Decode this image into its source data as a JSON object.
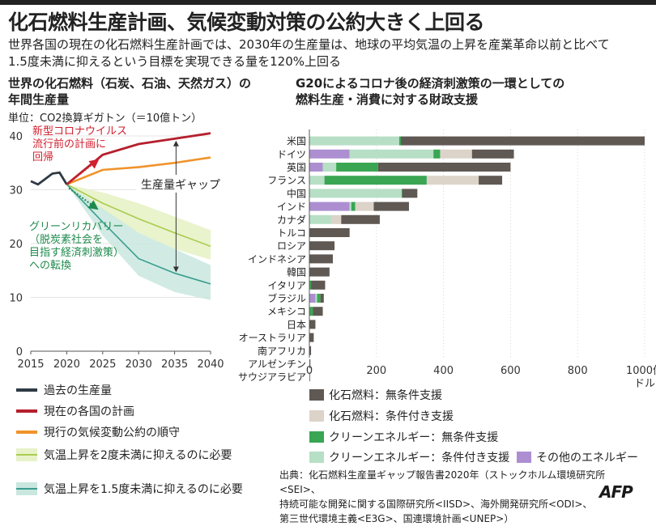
{
  "title": "化石燃料生産計画、気候変動対策の公約大きく上回る",
  "subtitle_lines": [
    "世界各国の現在の化石燃料生産計画では、2030年の生産量は、地球の平均気温の上昇を産業革命以前と比べて",
    "1.5度未満に抑えるという目標を実現できる量を120%上回る"
  ],
  "left_section": {
    "title_lines": [
      "世界の化石燃料（石炭、石油、天然ガス）の",
      "年間生産量"
    ],
    "unit": "単位：CO2換算ギガトン（＝10億トン）"
  },
  "right_section": {
    "title_lines": [
      "G20によるコロナ後の経済刺激策の一環としての",
      "燃料生産・消費に対する財政支援"
    ]
  },
  "colors": {
    "history": "#2e3a45",
    "current_plan": "#b51f2c",
    "pledges": "#f0932b",
    "band_2deg": "#e8f2c9",
    "line_2deg": "#a9cc4f",
    "band_15deg": "#c9e7df",
    "line_15deg": "#3a9e8e",
    "annot_red": "#d1202f",
    "annot_green": "#1d8a4c",
    "fossil_unconditional": "#5f5853",
    "fossil_conditional": "#dcd3c9",
    "clean_unconditional": "#3aa653",
    "clean_conditional": "#b7dfc5",
    "other_energy": "#ad8fd1"
  },
  "annotations": {
    "covid": [
      "新型コロナウイルス",
      "流行前の計画に",
      "回帰"
    ],
    "green": [
      "グリーンリカバリー",
      "（脱炭素社会を",
      "目指す経済刺激策）",
      "への転換"
    ],
    "gap": "生産量ギャップ"
  },
  "legend_left": [
    {
      "label": "過去の生産量",
      "kind": "line",
      "color": "#2e3a45"
    },
    {
      "label": "現在の各国の計画",
      "kind": "line",
      "color": "#b51f2c"
    },
    {
      "label": "現行の気候変動公約の順守",
      "kind": "line",
      "color": "#f0932b"
    },
    {
      "label": "気温上昇を2度未満に抑えるのに必要",
      "kind": "band",
      "color": "#e8f2c9",
      "line": "#a9cc4f"
    },
    {
      "label": "気温上昇を1.5度未満に抑えるのに必要",
      "kind": "band",
      "color": "#c9e7df",
      "line": "#3a9e8e"
    }
  ],
  "legend_right": [
    {
      "label": "化石燃料：無条件支援",
      "color": "#5f5853"
    },
    {
      "label": "化石燃料：条件付き支援",
      "color": "#dcd3c9"
    },
    {
      "label": "クリーンエネルギー：無条件支援",
      "color": "#3aa653"
    },
    {
      "label": "クリーンエネルギー：条件付き支援",
      "color": "#b7dfc5"
    },
    {
      "label": "その他のエネルギー",
      "color": "#ad8fd1"
    }
  ],
  "source_lines": [
    "出典：化石燃料生産量ギャップ報告書2020年（ストックホルム環境研究所<SEI>、",
    "持続可能な開発に関する国際研究所<IISD>、海外開発研究所<ODI>、",
    "第三世代環境主義<E3G>、国連環境計画<UNEP>）"
  ],
  "logo": "AFP",
  "chart_data": [
    {
      "type": "line",
      "title": "世界の化石燃料（石炭、石油、天然ガス）の年間生産量",
      "ylabel": "CO2換算ギガトン",
      "xlim": [
        2015,
        2040
      ],
      "ylim": [
        0,
        40
      ],
      "xticks": [
        "2015",
        "2020",
        "2025",
        "2030",
        "2035",
        "2040"
      ],
      "yticks": [
        "0",
        "10",
        "20",
        "30",
        "40"
      ],
      "series": [
        {
          "name": "過去の生産量",
          "x": [
            2015,
            2016,
            2017,
            2018,
            2019,
            2020
          ],
          "y": [
            31.6,
            31.0,
            32.0,
            33.0,
            33.2,
            31.0
          ]
        },
        {
          "name": "現在の各国の計画",
          "x": [
            2020,
            2025,
            2030,
            2035,
            2040
          ],
          "y": [
            31.0,
            36.5,
            38.5,
            39.5,
            40.5
          ]
        },
        {
          "name": "現行の気候変動公約の順守",
          "x": [
            2020,
            2025,
            2030,
            2035,
            2040
          ],
          "y": [
            31.0,
            33.7,
            34.2,
            35.0,
            36.0
          ]
        },
        {
          "name": "気温上昇を2度未満に抑えるのに必要",
          "x": [
            2020,
            2025,
            2030,
            2035,
            2040
          ],
          "y": [
            31.0,
            27.5,
            24.6,
            22.0,
            19.5
          ],
          "band_upper": [
            31.0,
            29.5,
            27.5,
            25.0,
            22.5
          ],
          "band_lower": [
            31.0,
            26.0,
            22.0,
            19.0,
            17.0
          ]
        },
        {
          "name": "気温上昇を1.5度未満に抑えるのに必要",
          "x": [
            2020,
            2025,
            2030,
            2035,
            2040
          ],
          "y": [
            31.0,
            24.0,
            17.2,
            14.5,
            12.5
          ],
          "band_upper": [
            31.0,
            26.5,
            22.0,
            19.0,
            16.0
          ],
          "band_lower": [
            31.0,
            21.5,
            14.0,
            11.0,
            9.5
          ]
        }
      ],
      "annotations": [
        "新型コロナウイルス流行前の計画に回帰",
        "グリーンリカバリー（脱炭素社会を目指す経済刺激策）への転換",
        "生産量ギャップ"
      ]
    },
    {
      "type": "bar",
      "orientation": "horizontal",
      "stacked": true,
      "title": "G20によるコロナ後の経済刺激策の一環としての燃料生産・消費に対する財政支援",
      "xlabel": "1000億ドル",
      "xlim": [
        0,
        1000
      ],
      "xticks": [
        "0",
        "200",
        "400",
        "600",
        "800",
        "1000億"
      ],
      "x_unit_label": "ドル",
      "categories": [
        "米国",
        "ドイツ",
        "英国",
        "フランス",
        "中国",
        "インド",
        "カナダ",
        "トルコ",
        "ロシア",
        "インドネシア",
        "韓国",
        "イタリア",
        "ブラジル",
        "メキシコ",
        "日本",
        "オーストラリア",
        "南アフリカ",
        "アルゼンチン",
        "サウジアラビア"
      ],
      "stack_order": [
        "その他のエネルギー",
        "クリーンエネルギー：条件付き支援",
        "クリーンエネルギー：無条件支援",
        "化石燃料：条件付き支援",
        "化石燃料：無条件支援"
      ],
      "series": [
        {
          "name": "その他のエネルギー",
          "values": [
            0,
            120,
            40,
            0,
            0,
            120,
            0,
            0,
            0,
            0,
            0,
            0,
            18,
            0,
            0,
            0,
            0,
            0,
            0
          ]
        },
        {
          "name": "クリーンエネルギー：条件付き支援",
          "values": [
            268,
            250,
            40,
            45,
            275,
            5,
            65,
            0,
            0,
            0,
            0,
            0,
            5,
            0,
            0,
            0,
            0,
            0,
            0
          ]
        },
        {
          "name": "クリーンエネルギー：無条件支援",
          "values": [
            5,
            20,
            125,
            305,
            2,
            12,
            0,
            0,
            0,
            0,
            0,
            5,
            10,
            10,
            0,
            0,
            0,
            0,
            0
          ]
        },
        {
          "name": "化石燃料：条件付き支援",
          "values": [
            0,
            95,
            0,
            155,
            0,
            55,
            30,
            0,
            0,
            0,
            0,
            0,
            0,
            0,
            0,
            0,
            0,
            0,
            0
          ]
        },
        {
          "name": "化石燃料：無条件支援",
          "values": [
            727,
            125,
            395,
            70,
            45,
            105,
            115,
            120,
            75,
            70,
            60,
            42,
            10,
            30,
            18,
            13,
            5,
            3,
            2
          ]
        }
      ]
    }
  ]
}
